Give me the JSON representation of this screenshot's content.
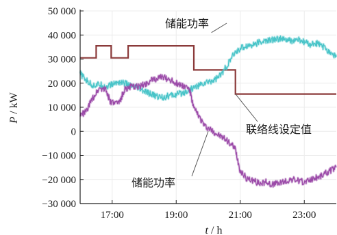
{
  "chart_data": {
    "type": "line",
    "xlabel": "t / h",
    "ylabel": "P / kW",
    "x_unit": "h",
    "xlim": [
      16.0,
      24.0
    ],
    "ylim": [
      -30000,
      50000
    ],
    "x_ticks": [
      17,
      19,
      21,
      23
    ],
    "x_tick_labels": [
      "17:00",
      "19:00",
      "21:00",
      "23:00"
    ],
    "y_ticks": [
      -30000,
      -20000,
      -10000,
      0,
      10000,
      20000,
      30000,
      40000,
      50000
    ],
    "y_tick_labels": [
      "−30 000",
      "−20 000",
      "−10 000",
      "0",
      "10 000",
      "20 000",
      "30 000",
      "40 000",
      "50 000"
    ],
    "grid": true,
    "legend": "none",
    "series": [
      {
        "name": "联络线设定值",
        "color": "#8b3a3a",
        "step": true,
        "x": [
          16.0,
          16.5,
          16.5,
          16.97,
          16.97,
          17.5,
          17.5,
          19.55,
          19.55,
          20.85,
          20.85,
          24.0
        ],
        "y": [
          30500,
          30500,
          35500,
          35500,
          30500,
          30500,
          35500,
          35500,
          25500,
          25500,
          15500,
          15500
        ]
      },
      {
        "name": "储能功率",
        "color": "#48c4c8",
        "x": [
          16.0,
          16.2,
          16.4,
          16.6,
          16.8,
          17.0,
          17.2,
          17.4,
          17.6,
          17.8,
          18.0,
          18.2,
          18.4,
          18.6,
          18.8,
          19.0,
          19.2,
          19.4,
          19.6,
          19.8,
          20.0,
          20.2,
          20.4,
          20.6,
          20.8,
          21.0,
          21.2,
          21.4,
          21.6,
          21.8,
          22.0,
          22.2,
          22.4,
          22.6,
          22.8,
          23.0,
          23.2,
          23.4,
          23.6,
          23.8,
          24.0
        ],
        "y": [
          24000,
          21000,
          19000,
          19500,
          18500,
          19500,
          20500,
          20000,
          18500,
          18000,
          16500,
          15500,
          14500,
          14200,
          14800,
          15200,
          16000,
          17000,
          18500,
          19500,
          20500,
          21500,
          23500,
          27500,
          32000,
          34500,
          35500,
          36000,
          37000,
          37500,
          38000,
          38500,
          38000,
          37500,
          38000,
          37000,
          36000,
          36500,
          35000,
          33000,
          31000
        ]
      },
      {
        "name": "储能功率",
        "color": "#9b4aa8",
        "x": [
          16.0,
          16.2,
          16.4,
          16.6,
          16.8,
          16.95,
          17.2,
          17.4,
          17.6,
          17.8,
          18.0,
          18.2,
          18.4,
          18.6,
          18.8,
          19.0,
          19.2,
          19.4,
          19.55,
          19.7,
          19.9,
          20.1,
          20.3,
          20.5,
          20.7,
          20.85,
          21.0,
          21.2,
          21.4,
          21.6,
          21.8,
          22.0,
          22.2,
          22.4,
          22.6,
          22.8,
          23.0,
          23.2,
          23.4,
          23.6,
          23.8,
          24.0
        ],
        "y": [
          6500,
          8500,
          14000,
          18000,
          17500,
          12000,
          11500,
          17500,
          18500,
          18500,
          19500,
          21000,
          22000,
          22500,
          21500,
          20000,
          19000,
          18000,
          9500,
          6500,
          2000,
          500,
          -1500,
          -3000,
          -5000,
          -7500,
          -16500,
          -19500,
          -20500,
          -21500,
          -21000,
          -22000,
          -21500,
          -21000,
          -20000,
          -20500,
          -21000,
          -20000,
          -19000,
          -18000,
          -16500,
          -15000
        ]
      }
    ],
    "annotations": [
      {
        "text": "储能功率",
        "points_to": [
          20.1,
          41000
        ]
      },
      {
        "text": "联络线设定值",
        "points_to": [
          20.85,
          15500
        ]
      },
      {
        "text": "储能功率",
        "points_to": [
          20.0,
          0
        ]
      }
    ]
  },
  "labels": {
    "p_symbol": "P",
    "p_unit": " / kW",
    "t_symbol": "t",
    "t_unit": " / h"
  }
}
